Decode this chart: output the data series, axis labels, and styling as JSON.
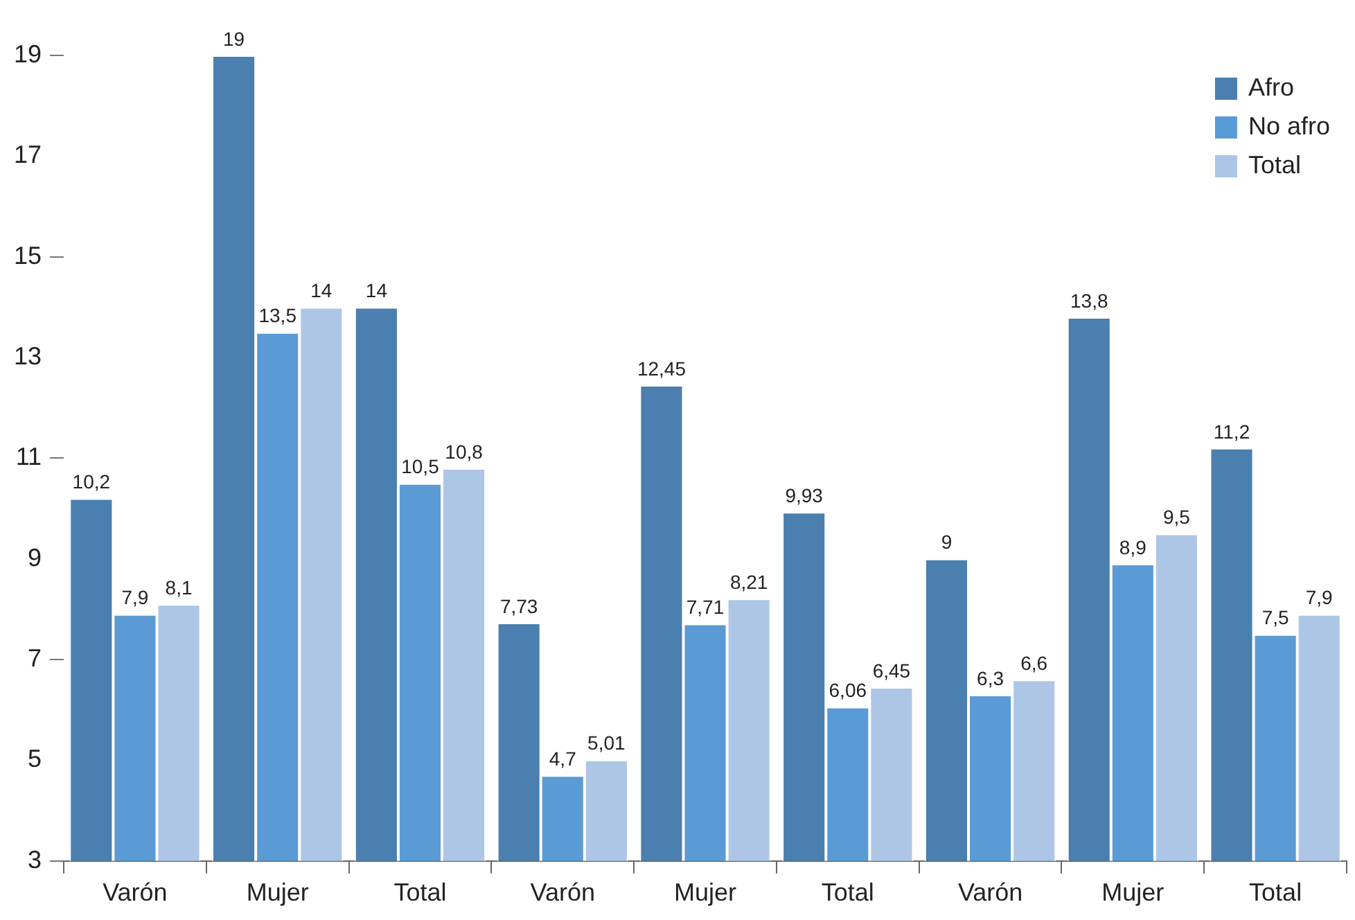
{
  "chart_data": {
    "type": "bar",
    "categories": [
      "Varón",
      "Mujer",
      "Total",
      "Varón",
      "Mujer",
      "Total",
      "Varón",
      "Mujer",
      "Total"
    ],
    "series": [
      {
        "name": "Afro",
        "color": "#4a7fb0",
        "values": [
          10.2,
          19,
          14,
          7.73,
          12.45,
          9.93,
          9,
          13.8,
          11.2
        ],
        "value_labels": [
          "10,2",
          "19",
          "14",
          "7,73",
          "12,45",
          "9,93",
          "9",
          "13,8",
          "11,2"
        ]
      },
      {
        "name": "No afro",
        "color": "#5b9bd5",
        "values": [
          7.9,
          13.5,
          10.5,
          4.7,
          7.71,
          6.06,
          6.3,
          8.9,
          7.5
        ],
        "value_labels": [
          "7,9",
          "13,5",
          "10,5",
          "4,7",
          "7,71",
          "6,06",
          "6,3",
          "8,9",
          "7,5"
        ]
      },
      {
        "name": "Total",
        "color": "#aec6e6",
        "values": [
          8.1,
          14,
          10.8,
          5.01,
          8.21,
          6.45,
          6.6,
          9.5,
          7.9
        ],
        "value_labels": [
          "8,1",
          "14",
          "10,8",
          "5,01",
          "8,21",
          "6,45",
          "6,6",
          "9,5",
          "7,9"
        ]
      }
    ],
    "ylim": [
      3,
      19
    ],
    "yticks": [
      3,
      5,
      7,
      9,
      11,
      13,
      15,
      17,
      19
    ],
    "legend": "top right"
  }
}
